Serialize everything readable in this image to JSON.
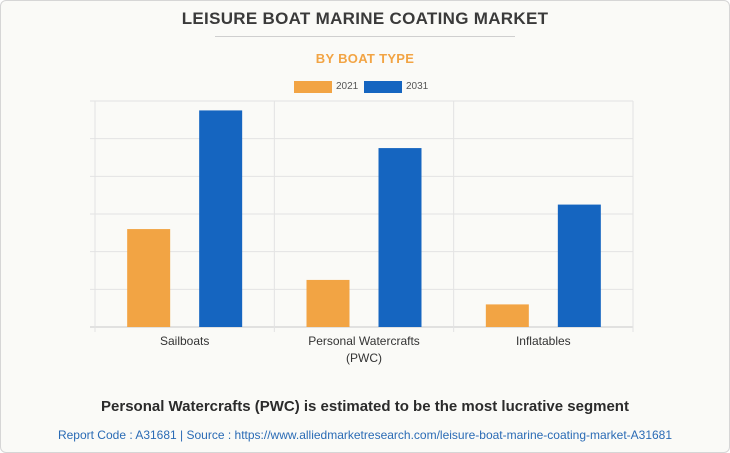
{
  "header": {
    "title": "LEISURE BOAT MARINE COATING MARKET",
    "subtitle": "BY BOAT TYPE"
  },
  "colors": {
    "series_2021": "#f2a444",
    "series_2031": "#1565c0",
    "grid": "#e3e3e3",
    "axis": "#c8c8c8"
  },
  "chart_data": {
    "type": "bar",
    "title": "LEISURE BOAT MARINE COATING MARKET",
    "subtitle": "BY BOAT TYPE",
    "categories": [
      [
        "Sailboats"
      ],
      [
        "Personal Watercrafts",
        "(PWC)"
      ],
      [
        "Inflatables"
      ]
    ],
    "series": [
      {
        "name": "2021",
        "values": [
          26,
          12.5,
          6
        ]
      },
      {
        "name": "2031",
        "values": [
          57.5,
          47.5,
          32.5
        ]
      }
    ],
    "ylim": [
      0,
      60
    ],
    "ytick_step": 10,
    "grid": true,
    "legend": "top-center",
    "xlabel": "",
    "ylabel": ""
  },
  "footer": {
    "headline": "Personal Watercrafts (PWC) is estimated to be the most lucrative segment",
    "source": "Report Code : A31681  |  Source : https://www.alliedmarketresearch.com/leisure-boat-marine-coating-market-A31681"
  }
}
